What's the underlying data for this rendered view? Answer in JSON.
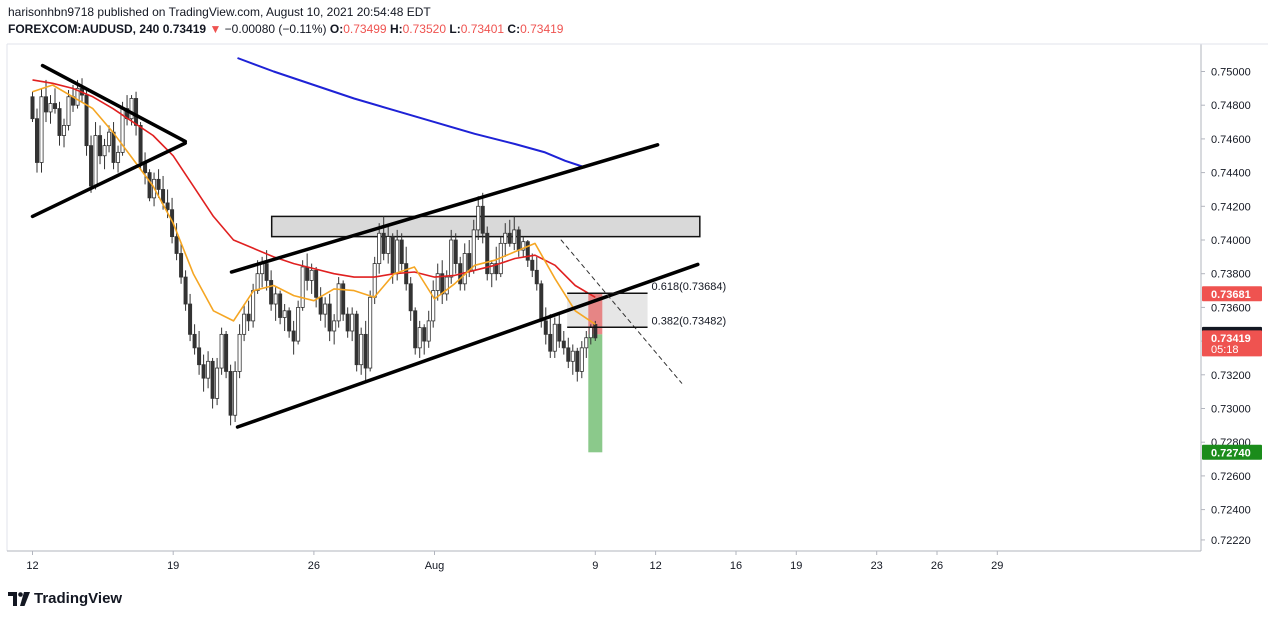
{
  "header": {
    "publisher_line": "harisonhbn9718 published on TradingView.com, August 10, 2021 20:54:48 EDT",
    "symbol": "FOREXCOM:AUDUSD, 240",
    "last": "0.73419",
    "change_arrow": "▼",
    "change": "−0.00080 (−0.11%)",
    "o_label": "O:",
    "o_val": "0.73499",
    "h_label": "H:",
    "h_val": "0.73520",
    "l_label": "L:",
    "l_val": "0.73401",
    "c_label": "C:",
    "c_val": "0.73419"
  },
  "branding": {
    "logo_text": "TradingView",
    "logo_icon": "tradingview-icon"
  },
  "colors": {
    "up": "#26a69a",
    "down": "#ef5350",
    "candle": "#333333",
    "ema_fast": "#f5a623",
    "ema_mid": "#e02020",
    "ema_slow": "#1e22d6",
    "zone_fill": "#d9d9d9",
    "target": "#7ec37e",
    "stop": "#e57373"
  },
  "chart_data": {
    "type": "candlestick",
    "title": "",
    "x_tick_labels": [
      "12",
      "19",
      "26",
      "Aug",
      "9",
      "12",
      "16",
      "19",
      "23",
      "26",
      "29"
    ],
    "y_tick_labels": [
      "0.75000",
      "0.74800",
      "0.74600",
      "0.74400",
      "0.74200",
      "0.74000",
      "0.73800",
      "0.73600",
      "0.73400",
      "0.73200",
      "0.73000",
      "0.72800",
      "0.72600",
      "0.72400",
      "0.72220"
    ],
    "ylim": [
      0.7217,
      0.7508
    ],
    "x_range_days": [
      12,
      60
    ],
    "price_badges": [
      {
        "label": "0.73681",
        "value": 0.73681,
        "bg": "#ef5350",
        "fg": "#ffffff"
      },
      {
        "label": "0.73440",
        "value": 0.7344,
        "bg": "#131722",
        "fg": "#ffffff"
      },
      {
        "label": "0.73419",
        "sub": "05:18",
        "value": 0.73419,
        "bg": "#ef5350",
        "fg": "#ffffff"
      },
      {
        "label": "0.72740",
        "value": 0.7274,
        "bg": "#1b8c1b",
        "fg": "#ffffff"
      }
    ],
    "fib_levels": [
      {
        "label": "0.618(0.73684)",
        "value": 0.73684
      },
      {
        "label": "0.382(0.73482)",
        "value": 0.73482
      }
    ],
    "resistance_zone": {
      "start_day": 23.9,
      "end_day": 45.2,
      "low": 0.7402,
      "high": 0.7414
    },
    "fib_zone": {
      "start_day": 38.6,
      "end_day": 42.6,
      "low": 0.73482,
      "high": 0.73684
    },
    "position": {
      "entry": 0.7344,
      "stop": 0.73681,
      "target": 0.7274,
      "day": 40.0
    },
    "trendlines": [
      {
        "name": "triangle-top",
        "points": [
          [
            12.5,
            0.75035
          ],
          [
            19.6,
            0.74585
          ]
        ]
      },
      {
        "name": "triangle-bottom",
        "points": [
          [
            12.0,
            0.7414
          ],
          [
            19.6,
            0.74575
          ]
        ]
      },
      {
        "name": "channel-top",
        "points": [
          [
            21.9,
            0.7381
          ],
          [
            43.1,
            0.74565
          ]
        ]
      },
      {
        "name": "channel-bottom",
        "points": [
          [
            22.2,
            0.7289
          ],
          [
            45.1,
            0.73855
          ]
        ]
      },
      {
        "name": "projection-dashed",
        "points": [
          [
            38.3,
            0.74
          ],
          [
            44.3,
            0.7315
          ]
        ]
      }
    ],
    "series": [
      {
        "name": "",
        "role": "ema_slow",
        "x": [
          22.2,
          24,
          26,
          28,
          30,
          32,
          34,
          36,
          37.5,
          38.5,
          39.5
        ],
        "y": [
          0.7508,
          0.75,
          0.7492,
          0.7484,
          0.7477,
          0.747,
          0.7463,
          0.7457,
          0.7452,
          0.7447,
          0.7443
        ]
      },
      {
        "name": "",
        "role": "ema_mid",
        "x": [
          12,
          13,
          14,
          15,
          16,
          17,
          18,
          19,
          20,
          21,
          22,
          23,
          24,
          25,
          26,
          27,
          28,
          29,
          30,
          31,
          32,
          33,
          34,
          35,
          36,
          37,
          38,
          39,
          40
        ],
        "y": [
          0.7495,
          0.7493,
          0.749,
          0.7485,
          0.7478,
          0.747,
          0.7462,
          0.745,
          0.7432,
          0.7414,
          0.74,
          0.7395,
          0.739,
          0.7386,
          0.7383,
          0.738,
          0.7378,
          0.7378,
          0.738,
          0.7381,
          0.7378,
          0.7379,
          0.7382,
          0.7385,
          0.7389,
          0.7391,
          0.7385,
          0.7373,
          0.7366
        ]
      },
      {
        "name": "",
        "role": "ema_fast",
        "x": [
          12,
          13,
          14,
          15,
          16,
          17,
          18,
          19,
          20,
          21,
          22,
          23,
          24,
          25,
          26,
          27,
          28,
          29,
          30,
          31,
          32,
          33,
          34,
          35,
          36,
          37,
          38,
          39,
          40
        ],
        "y": [
          0.7488,
          0.7492,
          0.7485,
          0.7478,
          0.7464,
          0.7448,
          0.7432,
          0.741,
          0.738,
          0.7358,
          0.7352,
          0.737,
          0.7373,
          0.7367,
          0.7364,
          0.7371,
          0.737,
          0.7366,
          0.738,
          0.7384,
          0.7365,
          0.7374,
          0.7385,
          0.7388,
          0.7393,
          0.7398,
          0.7377,
          0.7358,
          0.735
        ]
      }
    ],
    "candles": [
      [
        0.7485,
        0.7488,
        0.747,
        0.7472
      ],
      [
        0.7472,
        0.7478,
        0.744,
        0.7446
      ],
      [
        0.7446,
        0.749,
        0.744,
        0.7485
      ],
      [
        0.7485,
        0.7495,
        0.747,
        0.7476
      ],
      [
        0.7476,
        0.7486,
        0.7469,
        0.7481
      ],
      [
        0.7481,
        0.749,
        0.7475,
        0.7478
      ],
      [
        0.7478,
        0.7482,
        0.7456,
        0.7462
      ],
      [
        0.7462,
        0.7472,
        0.7455,
        0.7468
      ],
      [
        0.7468,
        0.7489,
        0.7465,
        0.7485
      ],
      [
        0.7485,
        0.7492,
        0.7476,
        0.748
      ],
      [
        0.748,
        0.7495,
        0.7478,
        0.749
      ],
      [
        0.749,
        0.7496,
        0.7482,
        0.7486
      ],
      [
        0.7486,
        0.749,
        0.745,
        0.7456
      ],
      [
        0.7456,
        0.7462,
        0.7428,
        0.7432
      ],
      [
        0.7432,
        0.747,
        0.743,
        0.7462
      ],
      [
        0.7462,
        0.7468,
        0.7445,
        0.745
      ],
      [
        0.745,
        0.746,
        0.7442,
        0.7456
      ],
      [
        0.7456,
        0.7468,
        0.7452,
        0.7464
      ],
      [
        0.7464,
        0.747,
        0.7442,
        0.7446
      ],
      [
        0.7446,
        0.7456,
        0.744,
        0.7452
      ],
      [
        0.7452,
        0.7482,
        0.745,
        0.7478
      ],
      [
        0.7478,
        0.7486,
        0.7468,
        0.7472
      ],
      [
        0.7472,
        0.7486,
        0.7468,
        0.7484
      ],
      [
        0.7484,
        0.7488,
        0.7462,
        0.7468
      ],
      [
        0.7468,
        0.747,
        0.7442,
        0.7446
      ],
      [
        0.7446,
        0.7452,
        0.7433,
        0.744
      ],
      [
        0.744,
        0.7442,
        0.7423,
        0.7425
      ],
      [
        0.7425,
        0.744,
        0.742,
        0.7436
      ],
      [
        0.7436,
        0.7442,
        0.7425,
        0.743
      ],
      [
        0.743,
        0.7438,
        0.7418,
        0.7422
      ],
      [
        0.7422,
        0.743,
        0.7413,
        0.7418
      ],
      [
        0.7418,
        0.7425,
        0.7398,
        0.7402
      ],
      [
        0.7402,
        0.741,
        0.7388,
        0.7392
      ],
      [
        0.7392,
        0.7398,
        0.7374,
        0.7378
      ],
      [
        0.7378,
        0.7382,
        0.7358,
        0.7362
      ],
      [
        0.7362,
        0.7368,
        0.734,
        0.7344
      ],
      [
        0.7344,
        0.735,
        0.7332,
        0.7336
      ],
      [
        0.7336,
        0.7346,
        0.732,
        0.7326
      ],
      [
        0.7326,
        0.7332,
        0.731,
        0.7318
      ],
      [
        0.7318,
        0.7334,
        0.7312,
        0.7328
      ],
      [
        0.7328,
        0.733,
        0.73,
        0.7306
      ],
      [
        0.7306,
        0.733,
        0.7302,
        0.7324
      ],
      [
        0.7324,
        0.7348,
        0.732,
        0.7344
      ],
      [
        0.7344,
        0.7346,
        0.7318,
        0.7322
      ],
      [
        0.7322,
        0.7326,
        0.729,
        0.7296
      ],
      [
        0.7296,
        0.7328,
        0.7292,
        0.7322
      ],
      [
        0.7322,
        0.735,
        0.7318,
        0.7344
      ],
      [
        0.7344,
        0.7362,
        0.734,
        0.7356
      ],
      [
        0.7356,
        0.7364,
        0.7346,
        0.7352
      ],
      [
        0.7352,
        0.7374,
        0.7348,
        0.737
      ],
      [
        0.737,
        0.7388,
        0.7368,
        0.738
      ],
      [
        0.738,
        0.739,
        0.7372,
        0.7386
      ],
      [
        0.7386,
        0.7394,
        0.737,
        0.7376
      ],
      [
        0.7376,
        0.7382,
        0.7358,
        0.7362
      ],
      [
        0.7362,
        0.7372,
        0.7352,
        0.7368
      ],
      [
        0.7368,
        0.737,
        0.735,
        0.7354
      ],
      [
        0.7354,
        0.7362,
        0.7346,
        0.7358
      ],
      [
        0.7358,
        0.736,
        0.7342,
        0.7346
      ],
      [
        0.7346,
        0.7352,
        0.7332,
        0.734
      ],
      [
        0.734,
        0.7364,
        0.7338,
        0.736
      ],
      [
        0.736,
        0.7388,
        0.7358,
        0.7384
      ],
      [
        0.7384,
        0.7392,
        0.737,
        0.7376
      ],
      [
        0.7376,
        0.7386,
        0.7368,
        0.7382
      ],
      [
        0.7382,
        0.7384,
        0.736,
        0.7366
      ],
      [
        0.7366,
        0.7372,
        0.7352,
        0.7356
      ],
      [
        0.7356,
        0.7366,
        0.7348,
        0.7362
      ],
      [
        0.7362,
        0.7368,
        0.734,
        0.7346
      ],
      [
        0.7346,
        0.7356,
        0.7338,
        0.7352
      ],
      [
        0.7352,
        0.7378,
        0.7348,
        0.7374
      ],
      [
        0.7374,
        0.7376,
        0.7352,
        0.7356
      ],
      [
        0.7356,
        0.736,
        0.7342,
        0.7346
      ],
      [
        0.7346,
        0.736,
        0.734,
        0.7356
      ],
      [
        0.7356,
        0.7358,
        0.7322,
        0.7326
      ],
      [
        0.7326,
        0.7348,
        0.732,
        0.7344
      ],
      [
        0.7344,
        0.7352,
        0.7316,
        0.7324
      ],
      [
        0.7324,
        0.737,
        0.7322,
        0.7366
      ],
      [
        0.7366,
        0.739,
        0.7362,
        0.7386
      ],
      [
        0.7386,
        0.741,
        0.738,
        0.7404
      ],
      [
        0.7404,
        0.7414,
        0.7388,
        0.7392
      ],
      [
        0.7392,
        0.7408,
        0.7386,
        0.7402
      ],
      [
        0.7402,
        0.7404,
        0.7374,
        0.738
      ],
      [
        0.738,
        0.7406,
        0.7376,
        0.74
      ],
      [
        0.74,
        0.7404,
        0.7382,
        0.7386
      ],
      [
        0.7386,
        0.7396,
        0.737,
        0.7374
      ],
      [
        0.7374,
        0.7378,
        0.7352,
        0.7358
      ],
      [
        0.7358,
        0.736,
        0.7332,
        0.7336
      ],
      [
        0.7336,
        0.7352,
        0.733,
        0.7348
      ],
      [
        0.7348,
        0.735,
        0.7332,
        0.734
      ],
      [
        0.734,
        0.7358,
        0.7336,
        0.7352
      ],
      [
        0.7352,
        0.7376,
        0.7348,
        0.737
      ],
      [
        0.737,
        0.7386,
        0.7364,
        0.738
      ],
      [
        0.738,
        0.7388,
        0.7362,
        0.7368
      ],
      [
        0.7368,
        0.7382,
        0.7364,
        0.7378
      ],
      [
        0.7378,
        0.7406,
        0.7374,
        0.74
      ],
      [
        0.74,
        0.7404,
        0.738,
        0.7386
      ],
      [
        0.7386,
        0.739,
        0.737,
        0.7374
      ],
      [
        0.7374,
        0.7398,
        0.737,
        0.7392
      ],
      [
        0.7392,
        0.74,
        0.7378,
        0.7382
      ],
      [
        0.7382,
        0.7412,
        0.738,
        0.7406
      ],
      [
        0.7406,
        0.7426,
        0.74,
        0.742
      ],
      [
        0.742,
        0.7428,
        0.7398,
        0.7404
      ],
      [
        0.7404,
        0.7408,
        0.7376,
        0.738
      ],
      [
        0.738,
        0.7388,
        0.7372,
        0.7386
      ],
      [
        0.7386,
        0.7396,
        0.7376,
        0.738
      ],
      [
        0.738,
        0.7402,
        0.7378,
        0.7398
      ],
      [
        0.7398,
        0.741,
        0.739,
        0.7404
      ],
      [
        0.7404,
        0.7412,
        0.7396,
        0.7398
      ],
      [
        0.7398,
        0.7414,
        0.7394,
        0.7406
      ],
      [
        0.7406,
        0.7408,
        0.739,
        0.7394
      ],
      [
        0.7394,
        0.7402,
        0.739,
        0.7399
      ],
      [
        0.7399,
        0.74,
        0.7384,
        0.7388
      ],
      [
        0.7388,
        0.7392,
        0.7378,
        0.7382
      ],
      [
        0.7382,
        0.739,
        0.737,
        0.7374
      ],
      [
        0.7374,
        0.7376,
        0.7348,
        0.7352
      ],
      [
        0.7352,
        0.736,
        0.7338,
        0.7344
      ],
      [
        0.7344,
        0.7356,
        0.733,
        0.7334
      ],
      [
        0.7334,
        0.7354,
        0.733,
        0.735
      ],
      [
        0.735,
        0.7356,
        0.7336,
        0.734
      ],
      [
        0.734,
        0.7346,
        0.7332,
        0.7336
      ],
      [
        0.7336,
        0.7342,
        0.7324,
        0.7328
      ],
      [
        0.7328,
        0.7338,
        0.732,
        0.7334
      ],
      [
        0.7334,
        0.7336,
        0.7316,
        0.7322
      ],
      [
        0.7322,
        0.734,
        0.7318,
        0.7336
      ],
      [
        0.7336,
        0.7346,
        0.733,
        0.7342
      ],
      [
        0.7342,
        0.735,
        0.7338,
        0.7348
      ],
      [
        0.73499,
        0.7352,
        0.73401,
        0.73419
      ]
    ]
  }
}
